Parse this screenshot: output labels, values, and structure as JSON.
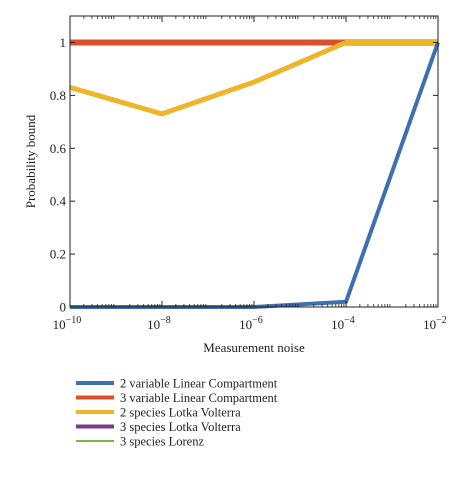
{
  "chart_data": {
    "type": "line",
    "xlabel": "Measurement noise",
    "ylabel": "Probability bound",
    "xscale": "log",
    "xlim": [
      1e-10,
      0.01
    ],
    "ylim": [
      0,
      1.1
    ],
    "grid": false,
    "legend_position": "below-plot",
    "x_tick_exponents": [
      "−10",
      "−8",
      "−6",
      "−4",
      "−2"
    ],
    "x_tick_base": "10",
    "y_ticks": [
      0,
      0.2,
      0.4,
      0.6,
      0.8,
      1
    ],
    "y_tick_labels": [
      "0",
      "0.2",
      "0.4",
      "0.6",
      "0.8",
      "1"
    ],
    "x": [
      1e-10,
      1e-08,
      1e-06,
      0.0001,
      0.01
    ],
    "series": [
      {
        "name": "2 variable Linear Compartment",
        "color": "#3e6fb0",
        "values": [
          0.0,
          0.0,
          0.0,
          0.02,
          1.0
        ]
      },
      {
        "name": "3 variable Linear Compartment",
        "color": "#d9502a",
        "values": [
          1.0,
          1.0,
          1.0,
          1.0,
          1.0
        ]
      },
      {
        "name": "2 species Lotka Volterra",
        "color": "#f0b429",
        "values": [
          0.83,
          0.73,
          0.85,
          1.0,
          1.0
        ]
      },
      {
        "name": "3 species Lotka Volterra",
        "color": "#7b3a8f",
        "values": [
          1.0,
          1.0,
          1.0,
          1.0,
          1.0
        ]
      },
      {
        "name": "3 species Lorenz",
        "color": "#7cb342",
        "values": [
          1.0,
          1.0,
          1.0,
          1.0,
          1.0
        ]
      }
    ]
  }
}
